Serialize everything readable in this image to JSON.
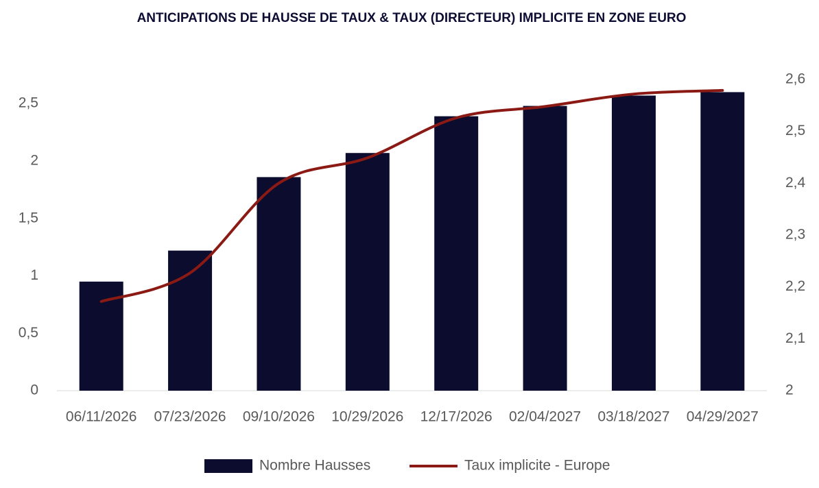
{
  "chart_data": {
    "type": "bar-line",
    "title": "ANTICIPATIONS DE HAUSSE DE TAUX & TAUX (DIRECTEUR) IMPLICITE EN ZONE EURO",
    "categories": [
      "06/11/2026",
      "07/23/2026",
      "09/10/2026",
      "10/29/2026",
      "12/17/2026",
      "02/04/2027",
      "03/18/2027",
      "04/29/2027"
    ],
    "series": [
      {
        "name": "Nombre Hausses",
        "type": "bar",
        "color": "#0b0c2e",
        "values": [
          0.95,
          1.22,
          1.86,
          2.07,
          2.39,
          2.48,
          2.57,
          2.6
        ]
      },
      {
        "name": "Taux implicite - Europe",
        "type": "line",
        "axis": "y2",
        "color": "#8b1a14",
        "values": [
          2.172,
          2.227,
          2.4,
          2.449,
          2.526,
          2.548,
          2.572,
          2.579
        ]
      }
    ],
    "ylim": [
      0,
      2.71
    ],
    "yticks": [
      0,
      {
        "value": 0.5,
        "label": "0,5"
      },
      1,
      {
        "value": 1.5,
        "label": "1,5"
      },
      2,
      {
        "value": 2.5,
        "label": "2,5"
      }
    ],
    "y2lim": [
      2,
      2.6
    ],
    "y2ticks": [
      2,
      {
        "value": 2.1,
        "label": "2,1"
      },
      {
        "value": 2.2,
        "label": "2,2"
      },
      {
        "value": 2.3,
        "label": "2,3"
      },
      {
        "value": 2.4,
        "label": "2,4"
      },
      {
        "value": 2.5,
        "label": "2,5"
      },
      {
        "value": 2.6,
        "label": "2,6"
      }
    ],
    "legend": "bottom"
  }
}
